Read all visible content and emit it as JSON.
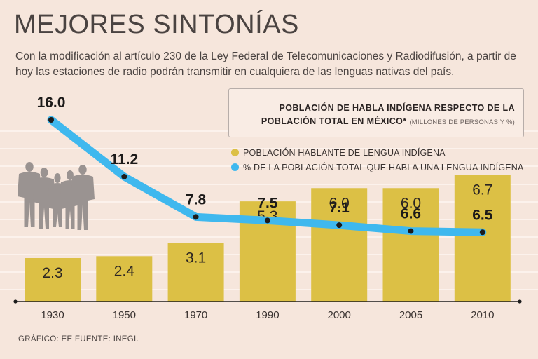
{
  "header": {
    "title": "MEJORES SINTONÍAS",
    "subtitle": "Con la modificación al artículo 230 de la Ley Federal de Telecomunicaciones y Radiodifusión, a partir de hoy las estaciones de radio podrán transmitir en cualquiera de las lenguas nativas del país."
  },
  "legend": {
    "title_line1": "POBLACIÓN DE HABLA INDÍGENA RESPECTO DE LA",
    "title_line2": "POBLACIÓN TOTAL EN MÉXICO*",
    "note": "(MILLONES DE PERSONAS Y %)",
    "series_bar_label": "POBLACIÓN HABLANTE DE LENGUA INDÍGENA",
    "series_line_label": "% DE LA POBLACIÓN TOTAL QUE HABLA UNA LENGUA INDÍGENA"
  },
  "colors": {
    "bar": "#dcc045",
    "line": "#3fb8ee",
    "line_dot": "#1c1c1c",
    "axis": "#1c1c1c",
    "grid": "#fdf6f1",
    "people": "#9a9391"
  },
  "chart_data": {
    "type": "bar+line",
    "categories": [
      "1930",
      "1950",
      "1970",
      "1990",
      "2000",
      "2005",
      "2010"
    ],
    "series": [
      {
        "name": "POBLACIÓN HABLANTE DE LENGUA INDÍGENA",
        "type": "bar",
        "values": [
          2.3,
          2.4,
          3.1,
          5.3,
          6.0,
          6.0,
          6.7
        ],
        "labels": [
          "2.3",
          "2.4",
          "3.1",
          "5.3",
          "6.0",
          "6.0",
          "6.7"
        ]
      },
      {
        "name": "% DE LA POBLACIÓN TOTAL QUE HABLA UNA LENGUA INDÍGENA",
        "type": "line",
        "values": [
          16.0,
          11.2,
          7.8,
          7.5,
          7.1,
          6.6,
          6.5
        ],
        "labels": [
          "16.0",
          "11.2",
          "7.8",
          "7.5",
          "7.1",
          "6.6",
          "6.5"
        ]
      }
    ],
    "bar_ylim": [
      0,
      11.5
    ],
    "line_ylim": [
      4.5,
      16.0
    ],
    "grid": true
  },
  "footer": {
    "credit": "GRÁFICO: EE  FUENTE: INEGI."
  }
}
